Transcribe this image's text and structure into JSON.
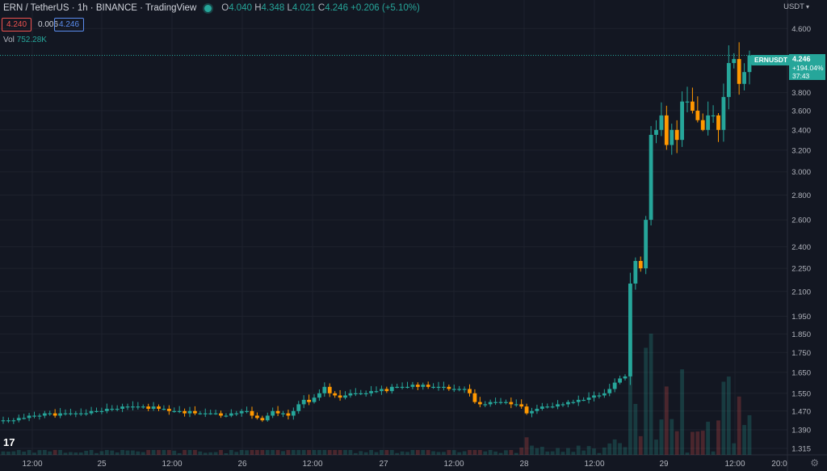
{
  "header": {
    "symbol": "ERN / TetherUS · 1h · BINANCE · TradingView",
    "ohlc": {
      "o_label": "O",
      "o": "4.040",
      "h_label": "H",
      "h": "4.348",
      "l_label": "L",
      "l": "4.021",
      "c_label": "C",
      "c": "4.246",
      "change": "+0.206 (+5.10%)"
    },
    "bid": "4.240",
    "spread": "0.006",
    "ask": "4.246",
    "vol_label": "Vol",
    "vol_value": "752.28K",
    "status_icon": "live-dot-icon"
  },
  "price_scale": {
    "unit": "USDT",
    "last_price": "4.246",
    "last_change": "+194.04%",
    "countdown": "37:43",
    "symbol_tag": "ERNUSDT"
  },
  "toolbar": {
    "logo_text": "17",
    "settings_icon": "gear-icon"
  },
  "colors": {
    "up": "#26a69a",
    "down": "#ff9800",
    "background": "#131722",
    "grid": "#1e222d",
    "text": "#b2b5be"
  },
  "chart_data": {
    "type": "candlestick",
    "title": "ERN / TetherUS · 1h · BINANCE",
    "ylim": [
      1.29,
      4.75
    ],
    "y_scale": "log",
    "y_ticks": [
      "4.600",
      "3.800",
      "3.600",
      "3.400",
      "3.200",
      "3.000",
      "2.800",
      "2.600",
      "2.400",
      "2.250",
      "2.100",
      "1.950",
      "1.850",
      "1.750",
      "1.650",
      "1.550",
      "1.470",
      "1.390",
      "1.315"
    ],
    "x_ticks": [
      "12:00",
      "25",
      "12:00",
      "26",
      "12:00",
      "27",
      "12:00",
      "28",
      "12:00",
      "29",
      "12:00",
      "20:0"
    ],
    "grid": true,
    "closes": [
      1.43,
      1.43,
      1.43,
      1.44,
      1.44,
      1.45,
      1.45,
      1.45,
      1.46,
      1.46,
      1.45,
      1.46,
      1.46,
      1.46,
      1.46,
      1.46,
      1.46,
      1.47,
      1.47,
      1.47,
      1.48,
      1.48,
      1.48,
      1.49,
      1.49,
      1.49,
      1.49,
      1.49,
      1.48,
      1.49,
      1.48,
      1.48,
      1.47,
      1.47,
      1.47,
      1.46,
      1.47,
      1.46,
      1.46,
      1.46,
      1.46,
      1.46,
      1.45,
      1.45,
      1.46,
      1.46,
      1.47,
      1.47,
      1.45,
      1.44,
      1.43,
      1.45,
      1.47,
      1.46,
      1.46,
      1.45,
      1.47,
      1.5,
      1.52,
      1.51,
      1.53,
      1.55,
      1.58,
      1.55,
      1.54,
      1.53,
      1.54,
      1.55,
      1.55,
      1.55,
      1.55,
      1.56,
      1.56,
      1.57,
      1.56,
      1.58,
      1.58,
      1.58,
      1.58,
      1.59,
      1.58,
      1.59,
      1.58,
      1.58,
      1.58,
      1.58,
      1.57,
      1.57,
      1.57,
      1.57,
      1.55,
      1.51,
      1.5,
      1.5,
      1.51,
      1.51,
      1.51,
      1.51,
      1.5,
      1.5,
      1.49,
      1.46,
      1.47,
      1.48,
      1.49,
      1.49,
      1.49,
      1.5,
      1.5,
      1.51,
      1.51,
      1.52,
      1.52,
      1.53,
      1.54,
      1.54,
      1.55,
      1.57,
      1.6,
      1.62,
      1.63,
      2.15,
      2.3,
      2.25,
      2.6,
      3.35,
      3.4,
      3.55,
      3.25,
      3.4,
      3.3,
      3.7,
      3.7,
      3.6,
      3.5,
      3.4,
      3.55,
      3.55,
      3.4,
      3.75,
      4.15,
      4.2,
      3.9,
      4.04,
      4.246
    ],
    "volume_scale": "relative"
  }
}
